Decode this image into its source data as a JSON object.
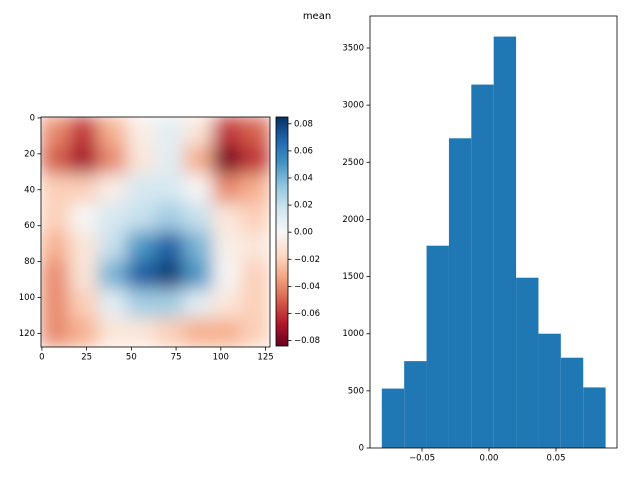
{
  "title": "mean",
  "chart_data": [
    {
      "type": "heatmap",
      "values": [
        [
          -0.04,
          -0.06,
          -0.03,
          -0.005,
          0.01,
          -0.01,
          -0.06,
          -0.05
        ],
        [
          -0.05,
          -0.07,
          -0.04,
          -0.01,
          0.01,
          -0.03,
          -0.08,
          -0.06
        ],
        [
          -0.02,
          -0.02,
          -0.005,
          0.015,
          0.015,
          0.0,
          -0.04,
          -0.03
        ],
        [
          -0.02,
          0.0,
          0.015,
          0.02,
          0.03,
          0.02,
          -0.01,
          -0.02
        ],
        [
          -0.03,
          -0.01,
          0.02,
          0.05,
          0.07,
          0.04,
          -0.005,
          -0.01
        ],
        [
          -0.04,
          -0.01,
          0.04,
          0.07,
          0.08,
          0.05,
          0.0,
          -0.02
        ],
        [
          -0.04,
          -0.02,
          0.01,
          0.03,
          0.03,
          0.01,
          -0.01,
          -0.02
        ],
        [
          -0.04,
          -0.03,
          -0.01,
          -0.01,
          -0.02,
          -0.03,
          -0.03,
          -0.02
        ]
      ],
      "xlim": [
        -0.5,
        127.5
      ],
      "ylim": [
        127.5,
        -0.5
      ],
      "xticks": [
        0,
        25,
        50,
        75,
        100,
        125
      ],
      "yticks": [
        0,
        20,
        40,
        60,
        80,
        100,
        120
      ],
      "cmap": "RdBu",
      "clim": [
        -0.084,
        0.085
      ],
      "cticks": [
        {
          "value": -0.08,
          "label": "−0.08"
        },
        {
          "value": -0.06,
          "label": "−0.06"
        },
        {
          "value": -0.04,
          "label": "−0.04"
        },
        {
          "value": -0.02,
          "label": "−0.02"
        },
        {
          "value": 0,
          "label": "0.00"
        },
        {
          "value": 0.02,
          "label": "0.02"
        },
        {
          "value": 0.04,
          "label": "0.04"
        },
        {
          "value": 0.06,
          "label": "0.06"
        },
        {
          "value": 0.08,
          "label": "0.08"
        }
      ]
    },
    {
      "type": "histogram",
      "bins": [
        -0.08,
        -0.0633,
        -0.0466,
        -0.0299,
        -0.0132,
        0.0035,
        0.0202,
        0.0369,
        0.0536,
        0.0703,
        0.087
      ],
      "values": [
        520,
        760,
        1770,
        2710,
        3180,
        3600,
        1490,
        1000,
        790,
        530
      ],
      "color": "#1f77b4",
      "xlim": [
        -0.0888,
        0.0955
      ],
      "ylim": [
        0,
        3780
      ],
      "xticks": [
        {
          "value": -0.05,
          "label": "−0.05"
        },
        {
          "value": 0,
          "label": "0.00"
        },
        {
          "value": 0.05,
          "label": "0.05"
        }
      ],
      "yticks": [
        0,
        500,
        1000,
        1500,
        2000,
        2500,
        3000,
        3500
      ]
    }
  ]
}
